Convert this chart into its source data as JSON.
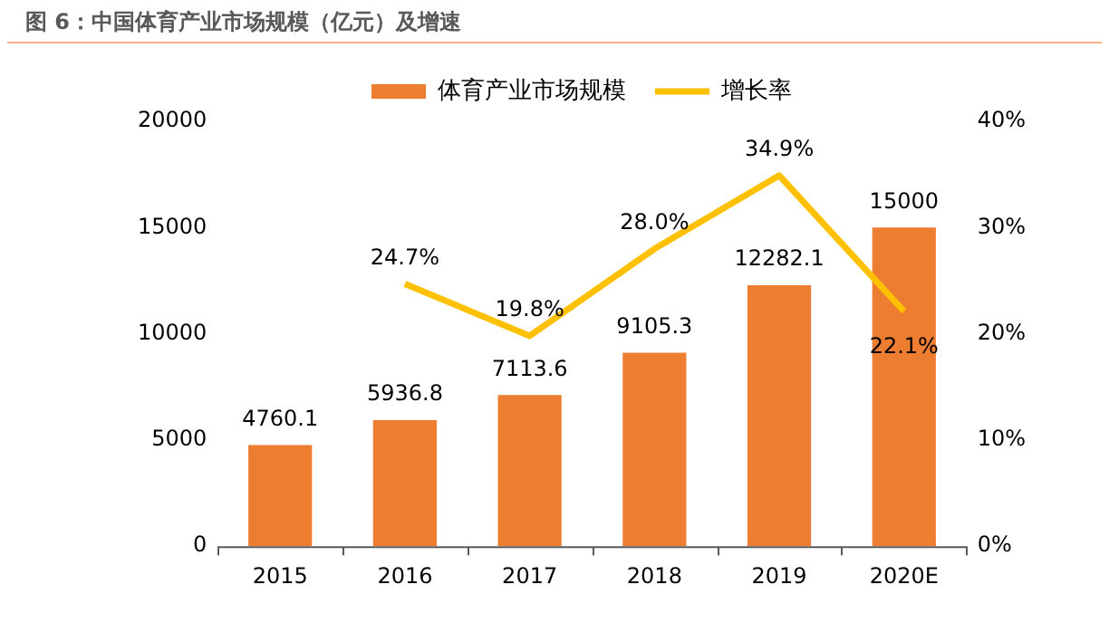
{
  "chart_data": {
    "type": "bar",
    "title": "图 6：中国体育产业市场规模（亿元）及增速",
    "categories": [
      "2015",
      "2016",
      "2017",
      "2018",
      "2019",
      "2020E"
    ],
    "series": [
      {
        "name": "体育产业市场规模",
        "color": "#ed7d31",
        "values": [
          4760.1,
          5936.8,
          7113.6,
          9105.3,
          12282.1,
          15000
        ]
      },
      {
        "name": "增长率",
        "type": "line",
        "axis": "y2",
        "color": "#ffc000",
        "values": [
          null,
          24.7,
          19.8,
          28.0,
          34.9,
          22.1
        ],
        "value_labels": [
          null,
          "24.7%",
          "19.8%",
          "28.0%",
          "34.9%",
          "22.1%"
        ]
      }
    ],
    "ylim": [
      0,
      20000
    ],
    "yticks": [
      0,
      5000,
      10000,
      15000,
      20000
    ],
    "y2lim": [
      0,
      40
    ],
    "y2ticks": [
      {
        "value": 0,
        "label": "0%"
      },
      {
        "value": 10,
        "label": "10%"
      },
      {
        "value": 20,
        "label": "20%"
      },
      {
        "value": 30,
        "label": "30%"
      },
      {
        "value": 40,
        "label": "40%"
      }
    ],
    "data_labels": true,
    "legend": "top",
    "grid": false,
    "marker": "none"
  }
}
